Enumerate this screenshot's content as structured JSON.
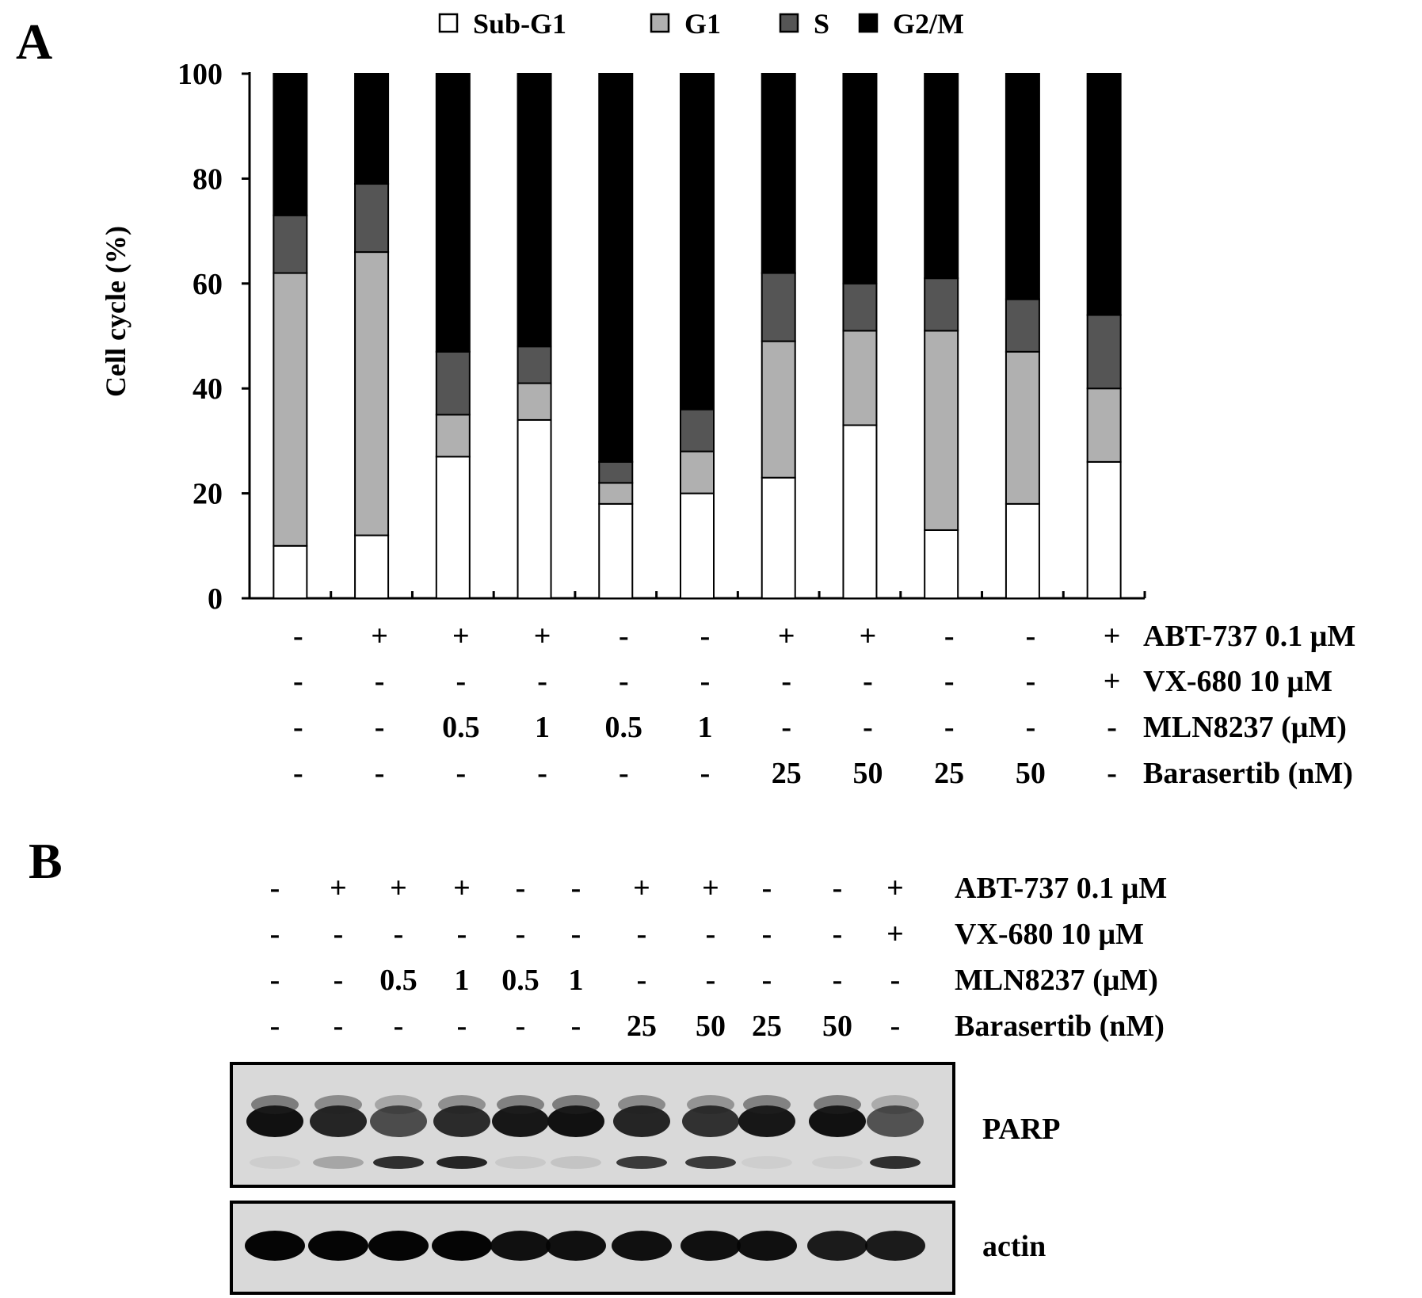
{
  "panel_a": {
    "label": "A"
  },
  "panel_b": {
    "label": "B"
  },
  "legend": {
    "items": [
      {
        "label": "Sub-G1",
        "color": "#ffffff"
      },
      {
        "label": "G1",
        "color": "#b0b0b0"
      },
      {
        "label": "S",
        "color": "#555555"
      },
      {
        "label": "G2/M",
        "color": "#000000"
      }
    ]
  },
  "treatments": {
    "labels": [
      "ABT-737 0.1 μM",
      "VX-680 10 μM",
      "MLN8237 (μM)",
      "Barasertib (nM)"
    ],
    "rows": [
      [
        "-",
        "+",
        "+",
        "+",
        "-",
        "-",
        "+",
        "+",
        "-",
        "-",
        "+"
      ],
      [
        "-",
        "-",
        "-",
        "-",
        "-",
        "-",
        "-",
        "-",
        "-",
        "-",
        "+"
      ],
      [
        "-",
        "-",
        "0.5",
        "1",
        "0.5",
        "1",
        "-",
        "-",
        "-",
        "-",
        "-"
      ],
      [
        "-",
        "-",
        "-",
        "-",
        "-",
        "-",
        "25",
        "50",
        "25",
        "50",
        "-"
      ]
    ]
  },
  "blot": {
    "bands": [
      {
        "label": "PARP",
        "full_length": [
          1.0,
          0.85,
          0.55,
          0.8,
          0.95,
          1.0,
          0.85,
          0.75,
          0.95,
          1.0,
          0.5
        ],
        "cleaved": [
          0.06,
          0.25,
          0.85,
          0.9,
          0.08,
          0.1,
          0.8,
          0.8,
          0.05,
          0.05,
          0.85
        ]
      },
      {
        "label": "actin",
        "intensity": [
          1.0,
          1.0,
          1.0,
          1.0,
          0.95,
          0.95,
          0.95,
          0.95,
          0.95,
          0.9,
          0.9
        ]
      }
    ]
  },
  "chart_data": {
    "type": "bar",
    "stacked": true,
    "ylabel": "Cell cycle (%)",
    "ylim": [
      0,
      100
    ],
    "yticks": [
      0,
      20,
      40,
      60,
      80,
      100
    ],
    "categories_count": 11,
    "series": [
      {
        "name": "Sub-G1",
        "color": "#ffffff",
        "values": [
          10,
          12,
          27,
          34,
          18,
          20,
          23,
          33,
          13,
          18,
          26
        ]
      },
      {
        "name": "G1",
        "color": "#b0b0b0",
        "values": [
          52,
          54,
          8,
          7,
          4,
          8,
          26,
          18,
          38,
          29,
          14
        ]
      },
      {
        "name": "S",
        "color": "#555555",
        "values": [
          11,
          13,
          12,
          7,
          4,
          8,
          13,
          9,
          10,
          10,
          14
        ]
      },
      {
        "name": "G2/M",
        "color": "#000000",
        "values": [
          27,
          21,
          53,
          52,
          74,
          64,
          38,
          40,
          39,
          43,
          46
        ]
      }
    ]
  }
}
